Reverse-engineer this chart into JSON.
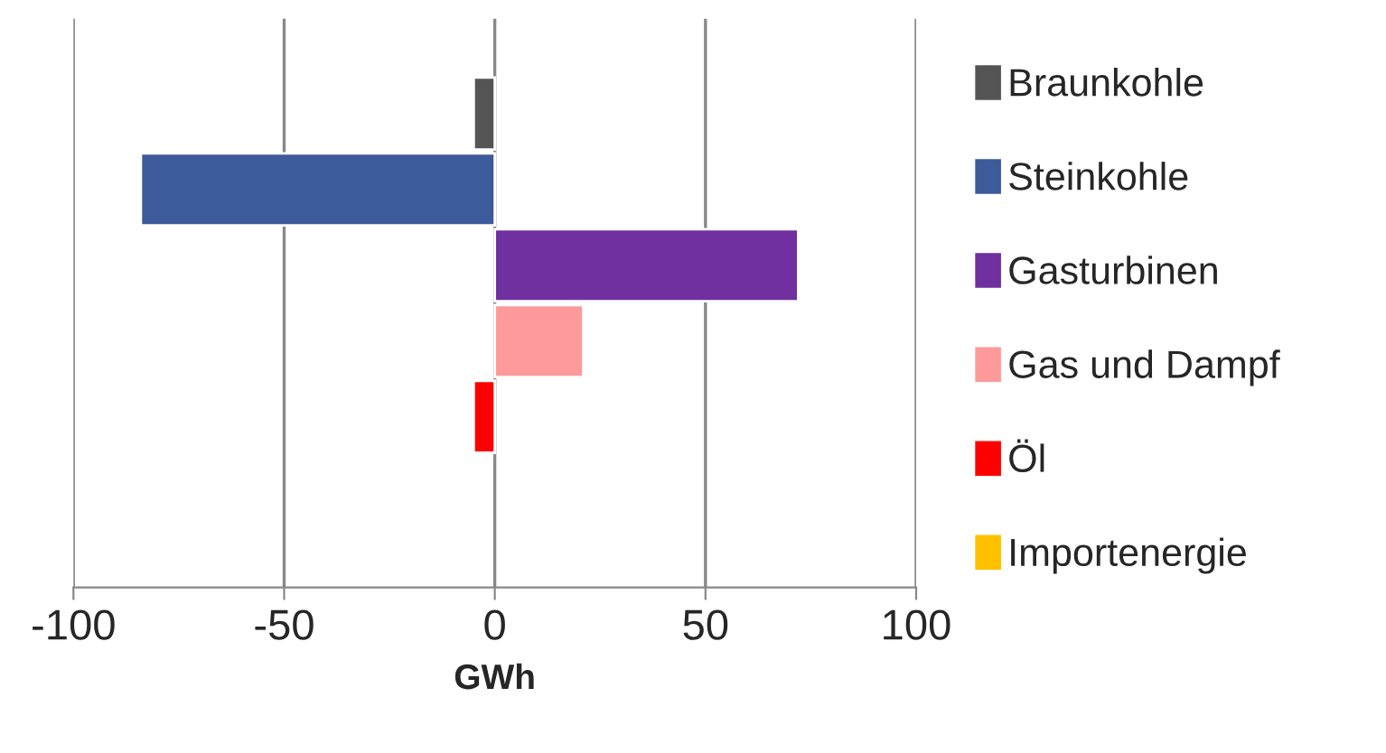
{
  "chart_data": {
    "type": "bar",
    "orientation": "horizontal",
    "categories": [
      null
    ],
    "series": [
      {
        "name": "Braunkohle",
        "color": "#555555",
        "values": [
          -5
        ]
      },
      {
        "name": "Steinkohle",
        "color": "#3d5a9a",
        "values": [
          -84
        ]
      },
      {
        "name": "Gasturbinen",
        "color": "#7030a0",
        "values": [
          72
        ]
      },
      {
        "name": "Gas und Dampf",
        "color": "#ff9a9a",
        "values": [
          21
        ]
      },
      {
        "name": "Öl",
        "color": "#ff0000",
        "values": [
          -5
        ]
      },
      {
        "name": "Importenergie",
        "color": "#ffc000",
        "values": [
          null
        ]
      }
    ],
    "xlim": [
      -100,
      100
    ],
    "xticks": [
      -100,
      -50,
      0,
      50,
      100
    ],
    "xlabel": "GWh",
    "grid": "x",
    "legend": "right",
    "tick_labels": "x"
  }
}
